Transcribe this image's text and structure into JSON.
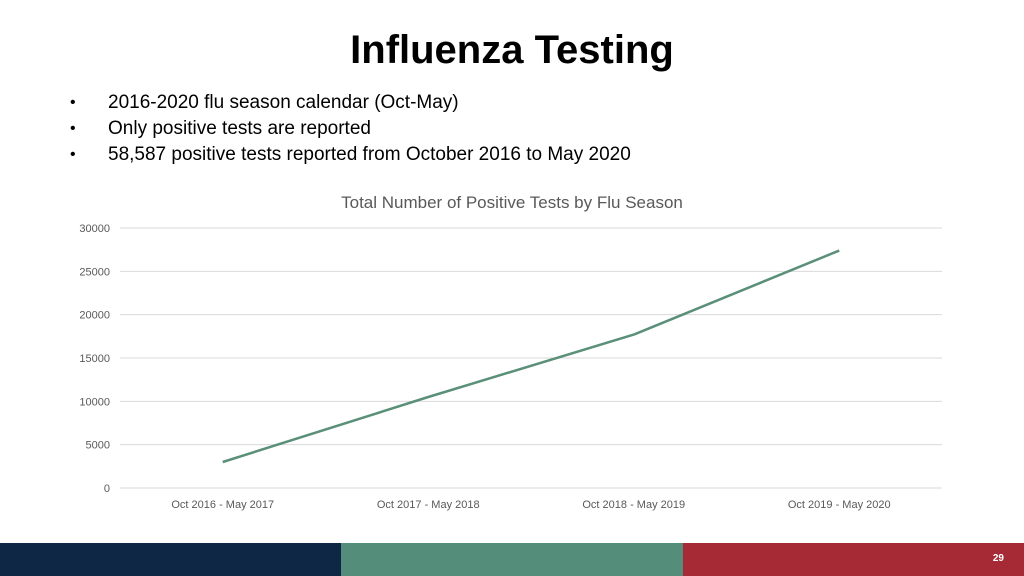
{
  "slide": {
    "title": "Influenza Testing",
    "bullets": [
      "2016-2020 flu season calendar (Oct-May)",
      "Only positive tests are reported",
      "58,587 positive tests reported from October 2016 to May 2020"
    ],
    "page_number": "29"
  },
  "footer_colors": {
    "navy": "#0d2745",
    "green": "#548d79",
    "red": "#a62a36"
  },
  "chart_data": {
    "type": "line",
    "title": "Total Number of Positive Tests by Flu Season",
    "categories": [
      "Oct 2016 - May 2017",
      "Oct 2017 - May 2018",
      "Oct 2018 - May 2019",
      "Oct 2019 - May 2020"
    ],
    "series": [
      {
        "values": [
          3000,
          10500,
          17700,
          27400
        ],
        "color": "#5a8f78"
      }
    ],
    "ylim": [
      0,
      30000
    ],
    "yticks": [
      0,
      5000,
      10000,
      15000,
      20000,
      25000,
      30000
    ],
    "grid": true,
    "legend": "none"
  }
}
